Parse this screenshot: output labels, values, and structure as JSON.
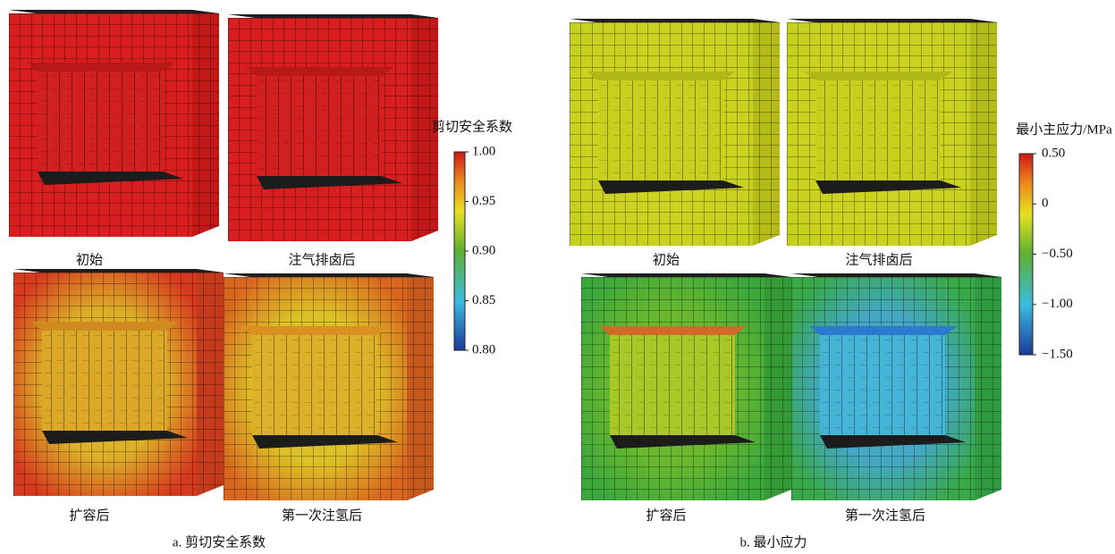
{
  "panels": [
    {
      "caption": "a. 剪切安全系数",
      "views": [
        "初始",
        "注气排卤后",
        "扩容后",
        "第一次注氢后"
      ],
      "colorbar": {
        "title": "剪切安全系数",
        "ticks": [
          {
            "value": 1.0,
            "label": "1.00"
          },
          {
            "value": 0.95,
            "label": "0.95"
          },
          {
            "value": 0.9,
            "label": "0.90"
          },
          {
            "value": 0.85,
            "label": "0.85"
          },
          {
            "value": 0.8,
            "label": "0.80"
          }
        ]
      }
    },
    {
      "caption": "b. 最小应力",
      "views": [
        "初始",
        "注气排卤后",
        "扩容后",
        "第一次注氢后"
      ],
      "colorbar": {
        "title": "最小主应力/MPa",
        "ticks": [
          {
            "value": 0.5,
            "label": "0.50"
          },
          0,
          {
            "value": -0.5,
            "label": "−0.50"
          },
          {
            "value": -1.0,
            "label": "−1.00"
          },
          {
            "value": -1.5,
            "label": "−1.50"
          }
        ]
      }
    }
  ]
}
